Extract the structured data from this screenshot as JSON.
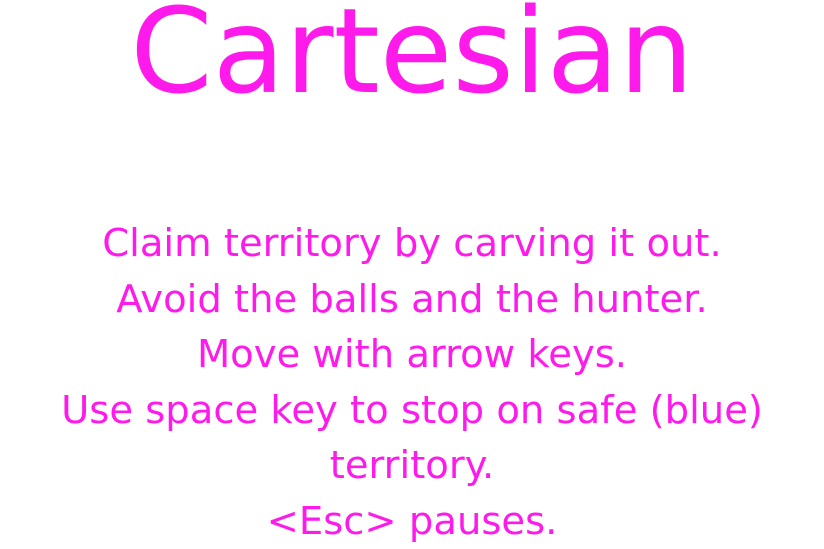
{
  "title": "Cartesian",
  "text_color": "#ff1aec",
  "background_color": "#ffffff",
  "instructions": [
    "Claim territory by carving it out.",
    "Avoid the balls and the hunter.",
    "Move with arrow keys.",
    "Use space key to stop on safe (blue)",
    "territory.",
    "<Esc> pauses."
  ]
}
